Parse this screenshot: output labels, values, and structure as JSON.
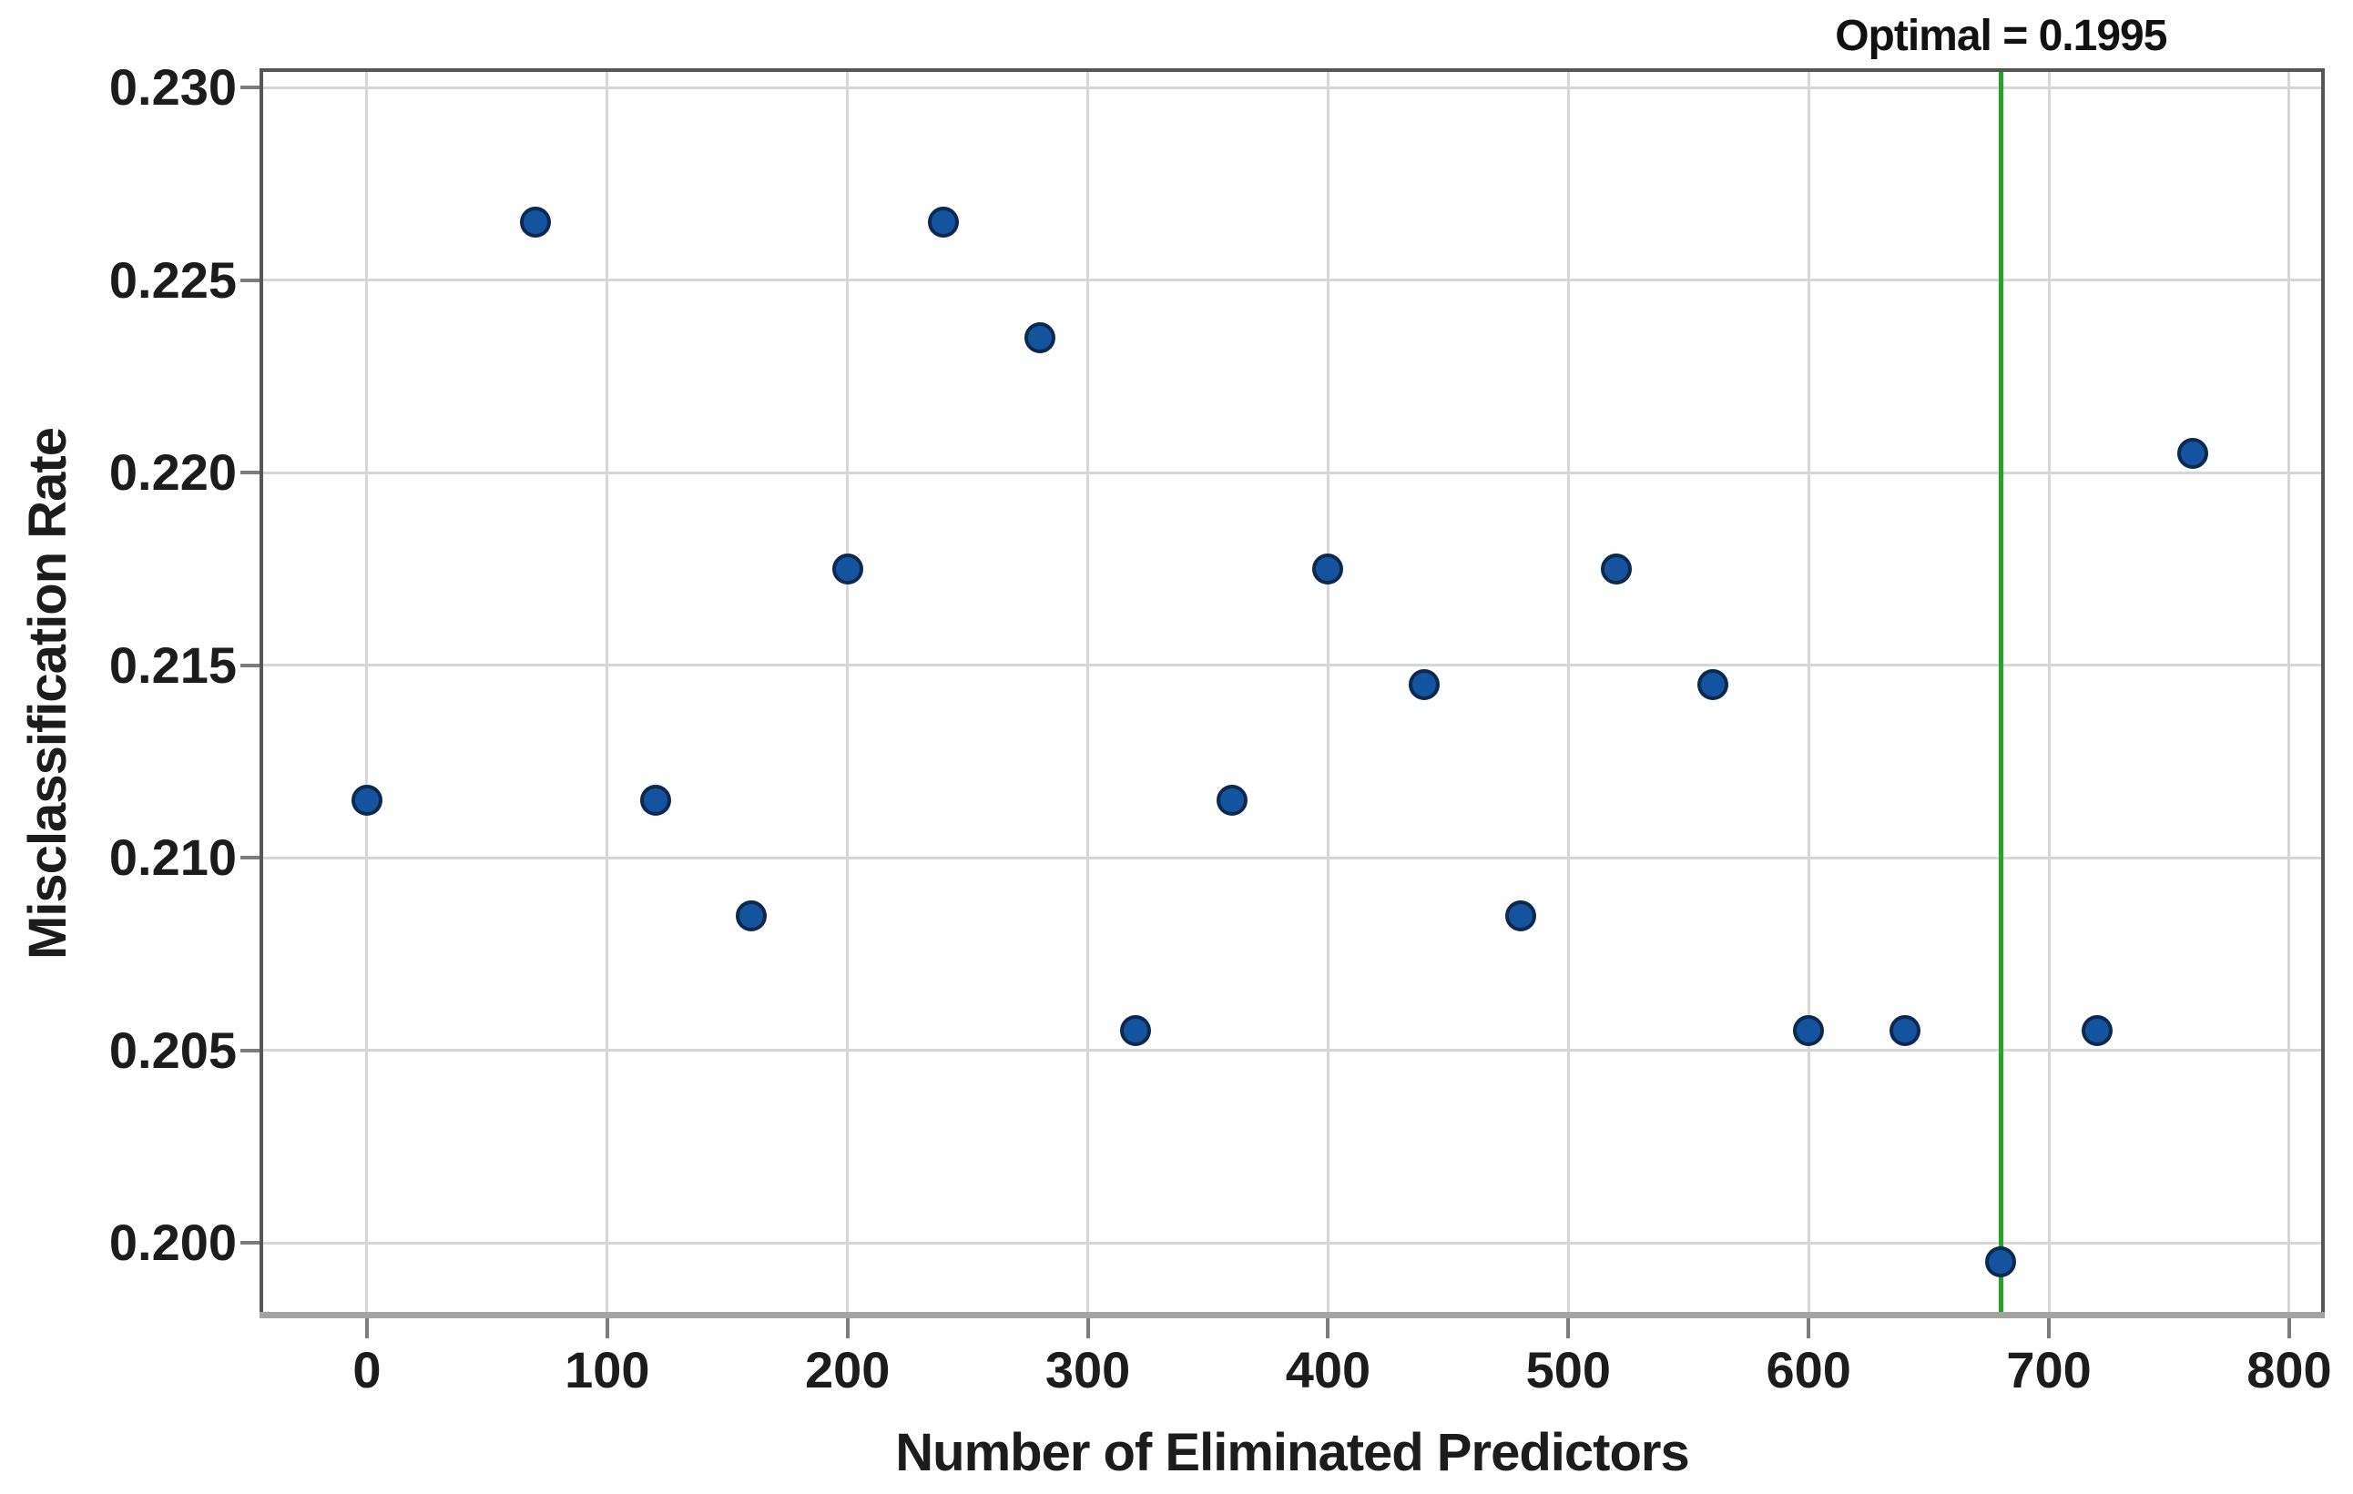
{
  "chart_data": {
    "type": "scatter",
    "title": "",
    "annotation_label": "Optimal = 0.1995",
    "optimal_value": 0.1995,
    "optimal_x": 680,
    "xlabel": "Number of Eliminated Predictors",
    "ylabel": "Misclassification Rate",
    "x_ticks": [
      0,
      100,
      200,
      300,
      400,
      500,
      600,
      700,
      800
    ],
    "y_ticks": [
      "0.200",
      "0.205",
      "0.210",
      "0.215",
      "0.220",
      "0.225",
      "0.230"
    ],
    "xlim": [
      -44.7,
      814.8
    ],
    "ylim": [
      0.19804,
      0.2305
    ],
    "grid": true,
    "legend": "none",
    "points": [
      [
        0,
        0.2115
      ],
      [
        70,
        0.2265
      ],
      [
        120,
        0.2115
      ],
      [
        160,
        0.2085
      ],
      [
        200,
        0.2175
      ],
      [
        240,
        0.2265
      ],
      [
        280,
        0.2235
      ],
      [
        320,
        0.2055
      ],
      [
        360,
        0.2115
      ],
      [
        400,
        0.2175
      ],
      [
        440,
        0.2145
      ],
      [
        480,
        0.2085
      ],
      [
        520,
        0.2175
      ],
      [
        560,
        0.2145
      ],
      [
        600,
        0.2055
      ],
      [
        640,
        0.2055
      ],
      [
        680,
        0.1995
      ],
      [
        720,
        0.2055
      ],
      [
        760,
        0.2205
      ]
    ],
    "colors": {
      "marker_fill": "#14539e",
      "marker_edge": "#0c2950",
      "optimal_line": "#25a525",
      "gridline": "#d7d7d7",
      "axis_box": "#565656",
      "axis_bottom": "#a3a3a3",
      "tick": "#7d7d7d",
      "text": "#1c1c1c"
    }
  }
}
